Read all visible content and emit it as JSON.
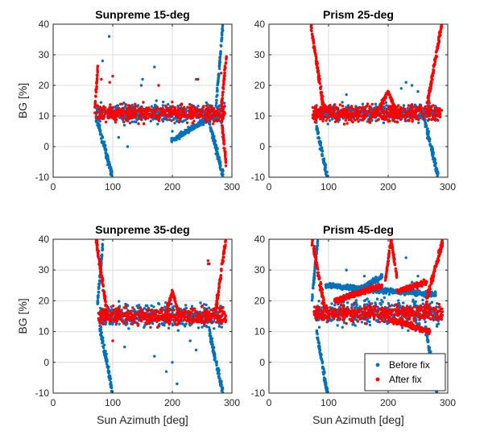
{
  "chart_data": [
    {
      "type": "scatter",
      "title": "Sunpreme 15-deg",
      "xlabel": "",
      "ylabel": "BG [%]",
      "xlim": [
        0,
        300
      ],
      "ylim": [
        -10,
        40
      ],
      "xticks": [
        0,
        100,
        200,
        300
      ],
      "yticks": [
        -10,
        0,
        10,
        20,
        30,
        40
      ],
      "grid": true,
      "series": [
        {
          "name": "Before fix",
          "color": "#0072BD",
          "band": {
            "x_start": 72,
            "x_end": 288,
            "center": 11,
            "spread": 3
          },
          "features": [
            {
              "kind": "drop",
              "x_start": 72,
              "x_end": 100,
              "y_from": 10,
              "y_to": -10
            },
            {
              "kind": "drop",
              "x_start": 262,
              "x_end": 286,
              "y_from": 8,
              "y_to": -10
            },
            {
              "kind": "rise",
              "x_start": 274,
              "x_end": 285,
              "y_from": 15,
              "y_to": 40
            },
            {
              "kind": "trend",
              "x_start": 198,
              "x_end": 260,
              "y_from": 2,
              "y_to": 9
            },
            {
              "kind": "outliers",
              "points": [
                [
                  83,
                  28
                ],
                [
                  94,
                  36
                ],
                [
                  150,
                  22
                ],
                [
                  148,
                  20
                ],
                [
                  170,
                  26
                ],
                [
                  240,
                  22
                ],
                [
                  200,
                  5
                ],
                [
                  110,
                  3
                ],
                [
                  125,
                  0
                ]
              ]
            }
          ]
        },
        {
          "name": "After fix",
          "color": "#FF0000",
          "band": {
            "x_start": 70,
            "x_end": 290,
            "center": 11,
            "spread": 2.5
          },
          "features": [
            {
              "kind": "rise",
              "x_start": 70,
              "x_end": 75,
              "y_from": 12,
              "y_to": 26
            },
            {
              "kind": "rise",
              "x_start": 282,
              "x_end": 291,
              "y_from": 12,
              "y_to": 30
            },
            {
              "kind": "drop",
              "x_start": 283,
              "x_end": 290,
              "y_from": 8,
              "y_to": -5
            },
            {
              "kind": "outliers",
              "points": [
                [
                  177,
                  20
                ],
                [
                  100,
                  23
                ],
                [
                  95,
                  21
                ],
                [
                  81,
                  22
                ],
                [
                  243,
                  22
                ],
                [
                  282,
                  24
                ]
              ]
            }
          ]
        }
      ]
    },
    {
      "type": "scatter",
      "title": "Prism 25-deg",
      "xlabel": "",
      "ylabel": "",
      "xlim": [
        0,
        300
      ],
      "ylim": [
        -10,
        40
      ],
      "xticks": [
        0,
        100,
        200,
        300
      ],
      "yticks": [
        -10,
        0,
        10,
        20,
        30,
        40
      ],
      "grid": true,
      "series": [
        {
          "name": "Before fix",
          "color": "#0072BD",
          "band": {
            "x_start": 78,
            "x_end": 282,
            "center": 11,
            "spread": 2.5
          },
          "features": [
            {
              "kind": "drop",
              "x_start": 78,
              "x_end": 98,
              "y_from": 8,
              "y_to": -10
            },
            {
              "kind": "drop",
              "x_start": 262,
              "x_end": 284,
              "y_from": 8,
              "y_to": -10
            },
            {
              "kind": "outliers",
              "points": [
                [
                  240,
                  20
                ],
                [
                  230,
                  21
                ],
                [
                  222,
                  19
                ],
                [
                  250,
                  18
                ],
                [
                  130,
                  17
                ]
              ]
            }
          ]
        },
        {
          "name": "After fix",
          "color": "#FF0000",
          "band": {
            "x_start": 72,
            "x_end": 290,
            "center": 11,
            "spread": 2.5
          },
          "features": [
            {
              "kind": "rise",
              "x_start": 70,
              "x_end": 92,
              "y_from": 40,
              "y_to": 12
            },
            {
              "kind": "rise",
              "x_start": 265,
              "x_end": 290,
              "y_from": 13,
              "y_to": 40
            },
            {
              "kind": "trend",
              "x_start": 180,
              "x_end": 200,
              "y_from": 11,
              "y_to": 18
            },
            {
              "kind": "trend",
              "x_start": 200,
              "x_end": 215,
              "y_from": 18,
              "y_to": 11
            }
          ]
        }
      ]
    },
    {
      "type": "scatter",
      "title": "Sunpreme 35-deg",
      "xlabel": "Sun Azimuth [deg]",
      "ylabel": "BG [%]",
      "xlim": [
        0,
        300
      ],
      "ylim": [
        -10,
        40
      ],
      "xticks": [
        0,
        100,
        200,
        300
      ],
      "yticks": [
        -10,
        0,
        10,
        20,
        30,
        40
      ],
      "grid": true,
      "series": [
        {
          "name": "Before fix",
          "color": "#0072BD",
          "band": {
            "x_start": 78,
            "x_end": 285,
            "center": 15,
            "spread": 3.5
          },
          "features": [
            {
              "kind": "drop",
              "x_start": 78,
              "x_end": 100,
              "y_from": 12,
              "y_to": -10
            },
            {
              "kind": "drop",
              "x_start": 262,
              "x_end": 285,
              "y_from": 10,
              "y_to": -10
            },
            {
              "kind": "rise",
              "x_start": 74,
              "x_end": 84,
              "y_from": 18,
              "y_to": 40
            },
            {
              "kind": "outliers",
              "points": [
                [
                  200,
                  0
                ],
                [
                  190,
                  -3
                ],
                [
                  208,
                  -7
                ],
                [
                  170,
                  2
                ],
                [
                  120,
                  5
                ],
                [
                  240,
                  4
                ],
                [
                  260,
                  32
                ],
                [
                  230,
                  7
                ]
              ]
            }
          ]
        },
        {
          "name": "After fix",
          "color": "#FF0000",
          "band": {
            "x_start": 75,
            "x_end": 290,
            "center": 15,
            "spread": 2.5
          },
          "features": [
            {
              "kind": "rise",
              "x_start": 72,
              "x_end": 92,
              "y_from": 40,
              "y_to": 14
            },
            {
              "kind": "rise",
              "x_start": 272,
              "x_end": 290,
              "y_from": 16,
              "y_to": 40
            },
            {
              "kind": "trend",
              "x_start": 188,
              "x_end": 200,
              "y_from": 15,
              "y_to": 23
            },
            {
              "kind": "trend",
              "x_start": 200,
              "x_end": 212,
              "y_from": 23,
              "y_to": 15
            },
            {
              "kind": "outliers",
              "points": [
                [
                  260,
                  33
                ],
                [
                  262,
                  32
                ],
                [
                  100,
                  7
                ]
              ]
            }
          ]
        }
      ]
    },
    {
      "type": "scatter",
      "title": "Prism 45-deg",
      "xlabel": "Sun Azimuth [deg]",
      "ylabel": "",
      "xlim": [
        0,
        300
      ],
      "ylim": [
        -10,
        40
      ],
      "xticks": [
        0,
        100,
        200,
        300
      ],
      "yticks": [
        -10,
        0,
        10,
        20,
        30,
        40
      ],
      "grid": true,
      "legend": {
        "location": "bottom-right",
        "entries": [
          "Before fix",
          "After fix"
        ]
      },
      "series": [
        {
          "name": "Before fix",
          "color": "#0072BD",
          "band": {
            "x_start": 78,
            "x_end": 285,
            "center": 16,
            "spread": 4
          },
          "features": [
            {
              "kind": "drop",
              "x_start": 80,
              "x_end": 98,
              "y_from": 10,
              "y_to": -10
            },
            {
              "kind": "drop",
              "x_start": 262,
              "x_end": 282,
              "y_from": 12,
              "y_to": -10
            },
            {
              "kind": "rise",
              "x_start": 72,
              "x_end": 82,
              "y_from": 20,
              "y_to": 40
            },
            {
              "kind": "trend",
              "x_start": 95,
              "x_end": 280,
              "y_from": 25,
              "y_to": 22
            },
            {
              "kind": "trend",
              "x_start": 120,
              "x_end": 190,
              "y_from": 20,
              "y_to": 28
            },
            {
              "kind": "outliers",
              "points": [
                [
                  210,
                  35
                ],
                [
                  230,
                  34
                ],
                [
                  130,
                  30
                ],
                [
                  240,
                  26
                ],
                [
                  160,
                  28
                ],
                [
                  250,
                  28
                ]
              ]
            }
          ]
        },
        {
          "name": "After fix",
          "color": "#FF0000",
          "band": {
            "x_start": 75,
            "x_end": 292,
            "center": 16,
            "spread": 2.5
          },
          "features": [
            {
              "kind": "rise",
              "x_start": 72,
              "x_end": 95,
              "y_from": 40,
              "y_to": 16
            },
            {
              "kind": "rise",
              "x_start": 262,
              "x_end": 292,
              "y_from": 18,
              "y_to": 40
            },
            {
              "kind": "trend",
              "x_start": 110,
              "x_end": 190,
              "y_from": 20,
              "y_to": 25
            },
            {
              "kind": "trend",
              "x_start": 195,
              "x_end": 205,
              "y_from": 26,
              "y_to": 40
            },
            {
              "kind": "trend",
              "x_start": 205,
              "x_end": 215,
              "y_from": 40,
              "y_to": 27
            },
            {
              "kind": "trend",
              "x_start": 215,
              "x_end": 265,
              "y_from": 23,
              "y_to": 26
            },
            {
              "kind": "trend",
              "x_start": 200,
              "x_end": 270,
              "y_from": 14,
              "y_to": 10
            }
          ]
        }
      ]
    }
  ]
}
